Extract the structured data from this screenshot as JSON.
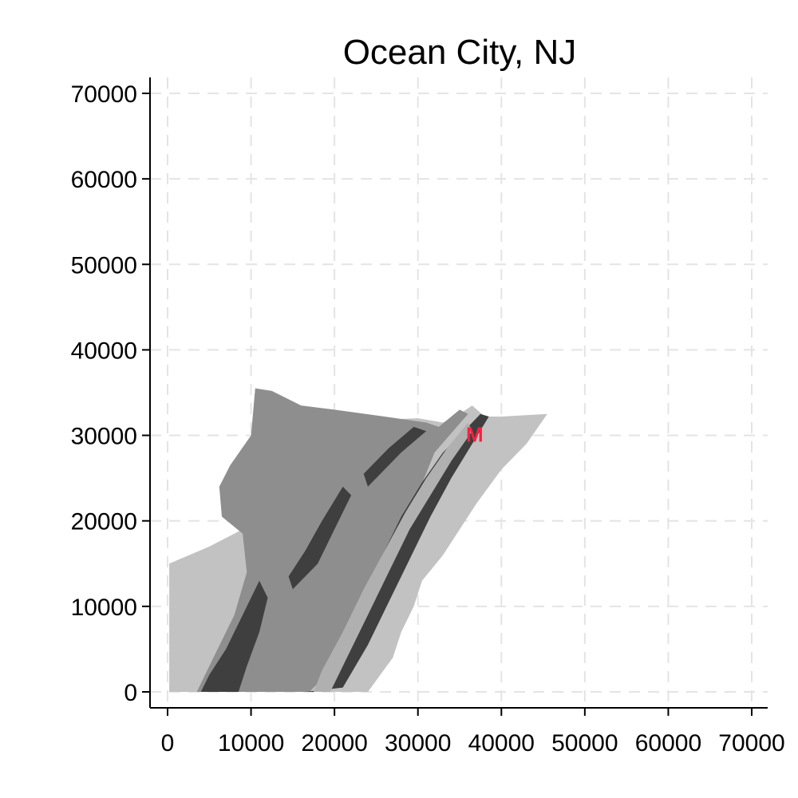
{
  "title": "Ocean City, NJ",
  "colors": {
    "background": "#ffffff",
    "grid": "#e4e4e4",
    "light_zone": "#c2c2c2",
    "medium_zone": "#8e8e8e",
    "dark_zone": "#3f3f3f",
    "marker": "#ff1f3d"
  },
  "axes": {
    "x": {
      "range": [
        0,
        70000
      ],
      "ticks": [
        0,
        10000,
        20000,
        30000,
        40000,
        50000,
        60000,
        70000
      ]
    },
    "y": {
      "range": [
        0,
        70000
      ],
      "ticks": [
        0,
        10000,
        20000,
        30000,
        40000,
        50000,
        60000,
        70000
      ]
    },
    "grid": true
  },
  "regions": [
    {
      "name": "outer-light-zone",
      "fill": "#c2c2c2",
      "points": [
        [
          200,
          15000
        ],
        [
          5000,
          17000
        ],
        [
          9000,
          19000
        ],
        [
          9500,
          21000
        ],
        [
          11000,
          24000
        ],
        [
          14000,
          25500
        ],
        [
          16000,
          27500
        ],
        [
          18000,
          29000
        ],
        [
          21000,
          30500
        ],
        [
          25000,
          31800
        ],
        [
          30000,
          32000
        ],
        [
          33000,
          31500
        ],
        [
          35000,
          32500
        ],
        [
          36500,
          33500
        ],
        [
          38000,
          32200
        ],
        [
          40000,
          32200
        ],
        [
          45500,
          32500
        ],
        [
          43000,
          29000
        ],
        [
          40000,
          26000
        ],
        [
          37000,
          22000
        ],
        [
          33000,
          16000
        ],
        [
          30500,
          13000
        ],
        [
          29500,
          10000
        ],
        [
          28000,
          7000
        ],
        [
          27000,
          4000
        ],
        [
          24000,
          0
        ],
        [
          200,
          0
        ]
      ]
    },
    {
      "name": "mainland-medium-zone",
      "fill": "#8e8e8e",
      "points": [
        [
          3500,
          0
        ],
        [
          6000,
          5000
        ],
        [
          8000,
          9000
        ],
        [
          9500,
          14000
        ],
        [
          9000,
          18500
        ],
        [
          6500,
          20500
        ],
        [
          6200,
          24000
        ],
        [
          7500,
          26500
        ],
        [
          10000,
          30000
        ],
        [
          10500,
          35500
        ],
        [
          12500,
          35200
        ],
        [
          16000,
          33500
        ],
        [
          20000,
          33000
        ],
        [
          26000,
          32200
        ],
        [
          31000,
          31500
        ],
        [
          32500,
          31000
        ],
        [
          35000,
          33000
        ],
        [
          36000,
          32500
        ],
        [
          32000,
          28000
        ],
        [
          29500,
          22000
        ],
        [
          27000,
          16000
        ],
        [
          24000,
          11000
        ],
        [
          21500,
          6000
        ],
        [
          19000,
          2000
        ],
        [
          17000,
          0
        ]
      ]
    },
    {
      "name": "barrier-island-dark-strip",
      "fill": "#3f3f3f",
      "points": [
        [
          16500,
          0
        ],
        [
          18500,
          0
        ],
        [
          20500,
          5000
        ],
        [
          23000,
          10500
        ],
        [
          25500,
          15500
        ],
        [
          28000,
          20500
        ],
        [
          30500,
          24500
        ],
        [
          33000,
          28000
        ],
        [
          36000,
          31000
        ],
        [
          37500,
          32500
        ],
        [
          38500,
          32200
        ],
        [
          36500,
          29000
        ],
        [
          34000,
          25000
        ],
        [
          31500,
          20500
        ],
        [
          29000,
          15500
        ],
        [
          26500,
          10500
        ],
        [
          24000,
          5500
        ],
        [
          21000,
          500
        ]
      ]
    },
    {
      "name": "barrier-island-light-strip",
      "fill": "#b0b0b0",
      "points": [
        [
          17500,
          0
        ],
        [
          19500,
          0
        ],
        [
          21500,
          4000
        ],
        [
          24000,
          9000
        ],
        [
          26500,
          14000
        ],
        [
          29000,
          19000
        ],
        [
          31500,
          23000
        ],
        [
          34000,
          27000
        ],
        [
          36500,
          30500
        ],
        [
          36000,
          31500
        ],
        [
          33500,
          28500
        ],
        [
          31000,
          25000
        ],
        [
          28500,
          21000
        ],
        [
          26000,
          16500
        ],
        [
          23500,
          12000
        ],
        [
          21000,
          7000
        ],
        [
          18500,
          2500
        ]
      ]
    },
    {
      "name": "mainland-dark-patch-south",
      "fill": "#3f3f3f",
      "points": [
        [
          4000,
          0
        ],
        [
          8500,
          0
        ],
        [
          9500,
          3000
        ],
        [
          11000,
          7000
        ],
        [
          12000,
          11000
        ],
        [
          11000,
          13000
        ],
        [
          9000,
          9000
        ],
        [
          7000,
          5000
        ],
        [
          5000,
          2000
        ]
      ]
    },
    {
      "name": "mainland-dark-patch-central",
      "fill": "#3f3f3f",
      "points": [
        [
          15000,
          12000
        ],
        [
          18000,
          15000
        ],
        [
          20000,
          19000
        ],
        [
          22000,
          23000
        ],
        [
          21000,
          24000
        ],
        [
          18500,
          20000
        ],
        [
          16500,
          16500
        ],
        [
          14500,
          13500
        ]
      ]
    },
    {
      "name": "mainland-dark-patch-north",
      "fill": "#3f3f3f",
      "points": [
        [
          24000,
          24000
        ],
        [
          28000,
          28000
        ],
        [
          31000,
          30500
        ],
        [
          29500,
          31000
        ],
        [
          26500,
          28500
        ],
        [
          23500,
          25500
        ]
      ]
    }
  ],
  "marker": {
    "x": 36800,
    "y": 30200,
    "label": "M",
    "color": "#ff1f3d"
  }
}
